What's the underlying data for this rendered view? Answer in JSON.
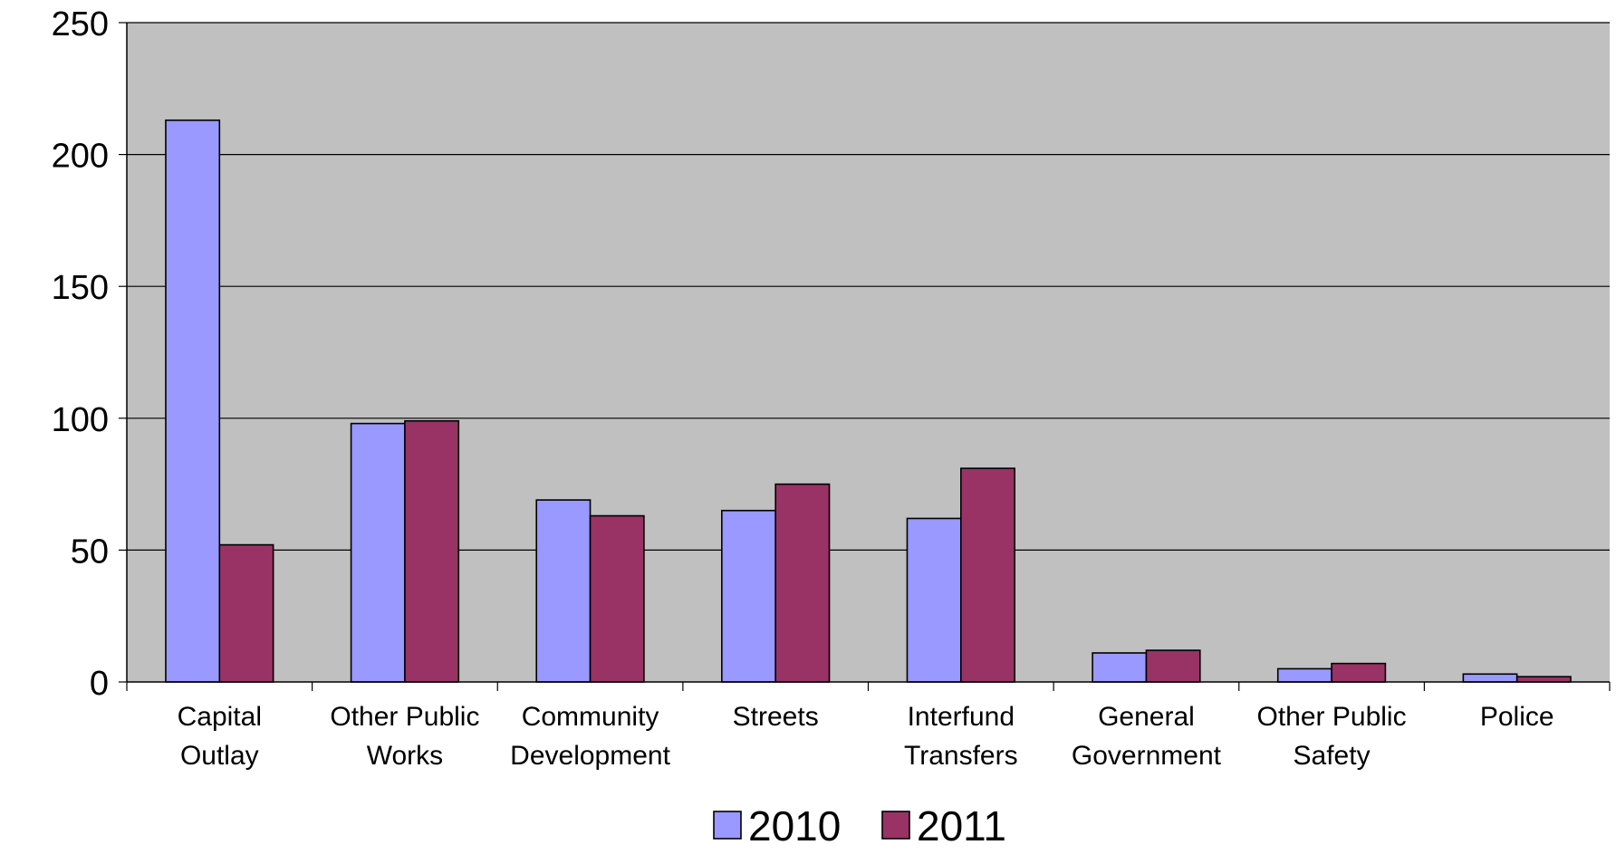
{
  "chart_data": {
    "type": "bar",
    "title": "",
    "xlabel": "",
    "ylabel": "",
    "ylim": [
      0,
      250
    ],
    "yticks": [
      0,
      50,
      100,
      150,
      200,
      250
    ],
    "grid": true,
    "legend_position": "bottom",
    "plot_background": "#C0C0C0",
    "categories": [
      [
        "Capital",
        "Outlay"
      ],
      [
        "Other Public",
        "Works"
      ],
      [
        "Community",
        "Development"
      ],
      [
        "Streets"
      ],
      [
        "Interfund",
        "Transfers"
      ],
      [
        "General",
        "Government"
      ],
      [
        "Other Public",
        "Safety"
      ],
      [
        "Police"
      ]
    ],
    "series": [
      {
        "name": "2010",
        "color": "#9999FF",
        "values": [
          213,
          98,
          69,
          65,
          62,
          11,
          5,
          3
        ]
      },
      {
        "name": "2011",
        "color": "#993366",
        "values": [
          52,
          99,
          63,
          75,
          81,
          12,
          7,
          2
        ]
      }
    ]
  }
}
